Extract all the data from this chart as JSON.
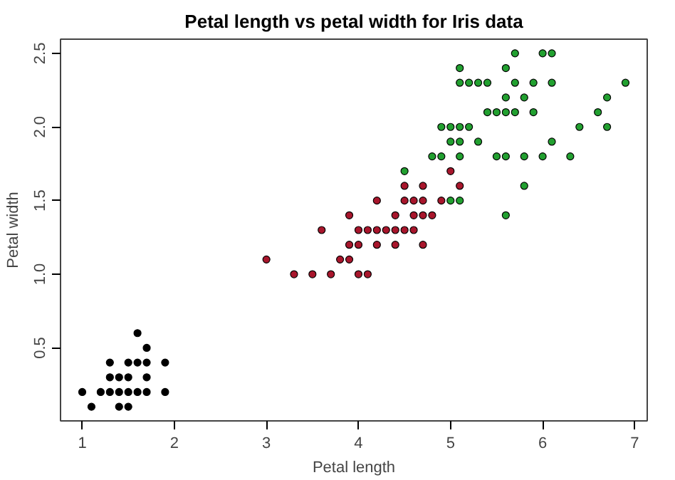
{
  "chart_data": {
    "type": "scatter",
    "title": "Petal length vs petal width for Iris data",
    "xlabel": "Petal length",
    "ylabel": "Petal width",
    "xlim": [
      0.764,
      7.136
    ],
    "ylim": [
      0.004,
      2.596
    ],
    "xticks": [
      1,
      2,
      3,
      4,
      5,
      6,
      7
    ],
    "yticks": [
      {
        "value": 0.5,
        "label": "0.5"
      },
      {
        "value": 1.0,
        "label": "1.0"
      },
      {
        "value": 1.5,
        "label": "1.5"
      },
      {
        "value": 2.0,
        "label": "2.0"
      },
      {
        "value": 2.5,
        "label": "2.5"
      }
    ],
    "grid": false,
    "marker": "circle",
    "series": [
      {
        "color": "#000000",
        "x": [
          1.4,
          1.3,
          1.5,
          1.7,
          1.4,
          1.5,
          1.6,
          1.4,
          1.1,
          1.2,
          1.5,
          1.3,
          1.7,
          1.5,
          1.7,
          1.0,
          1.7,
          1.9,
          1.6,
          1.3,
          1.6,
          1.9
        ],
        "values": [
          0.2,
          0.2,
          0.2,
          0.4,
          0.3,
          0.1,
          0.2,
          0.1,
          0.1,
          0.2,
          0.4,
          0.4,
          0.3,
          0.3,
          0.2,
          0.2,
          0.5,
          0.2,
          0.4,
          0.3,
          0.6,
          0.4
        ]
      },
      {
        "color": "#a8162c",
        "x": [
          4.7,
          4.5,
          4.9,
          4.0,
          4.6,
          4.5,
          4.7,
          3.3,
          4.6,
          3.9,
          3.5,
          4.2,
          4.0,
          3.6,
          4.4,
          4.1,
          3.9,
          4.7,
          4.3,
          4.8,
          5.0,
          3.8,
          3.7,
          3.9,
          5.1,
          4.5,
          4.7,
          4.4,
          4.1,
          4.4,
          4.6,
          4.0,
          4.2,
          4.2,
          3.0
        ],
        "values": [
          1.4,
          1.5,
          1.5,
          1.3,
          1.5,
          1.3,
          1.6,
          1.0,
          1.3,
          1.4,
          1.0,
          1.5,
          1.0,
          1.3,
          1.4,
          1.0,
          1.1,
          1.2,
          1.3,
          1.4,
          1.7,
          1.1,
          1.0,
          1.2,
          1.6,
          1.6,
          1.5,
          1.3,
          1.3,
          1.2,
          1.4,
          1.2,
          1.3,
          1.2,
          1.1
        ]
      },
      {
        "color": "#22a030",
        "x": [
          6.0,
          5.1,
          5.9,
          5.6,
          5.8,
          6.6,
          4.5,
          6.3,
          5.8,
          6.1,
          5.1,
          5.3,
          5.5,
          5.0,
          5.1,
          5.3,
          5.5,
          6.7,
          6.9,
          5.0,
          5.7,
          4.9,
          6.7,
          4.9,
          5.7,
          6.0,
          4.8,
          5.6,
          5.8,
          6.1,
          6.4,
          5.6,
          5.1,
          5.6,
          6.1,
          5.6,
          5.4,
          5.1,
          5.9,
          5.7,
          5.2,
          5.0,
          5.2,
          5.4,
          5.1
        ],
        "values": [
          2.5,
          1.9,
          2.1,
          1.8,
          2.2,
          2.1,
          1.7,
          1.8,
          1.8,
          2.5,
          2.0,
          1.9,
          2.1,
          2.0,
          2.4,
          2.3,
          1.8,
          2.2,
          2.3,
          1.5,
          2.3,
          2.0,
          2.0,
          1.8,
          2.1,
          1.8,
          1.8,
          2.1,
          1.6,
          1.9,
          2.0,
          2.2,
          1.5,
          1.4,
          2.3,
          2.4,
          2.1,
          2.3,
          2.3,
          2.5,
          2.3,
          1.9,
          2.0,
          2.3,
          1.8
        ]
      }
    ]
  }
}
